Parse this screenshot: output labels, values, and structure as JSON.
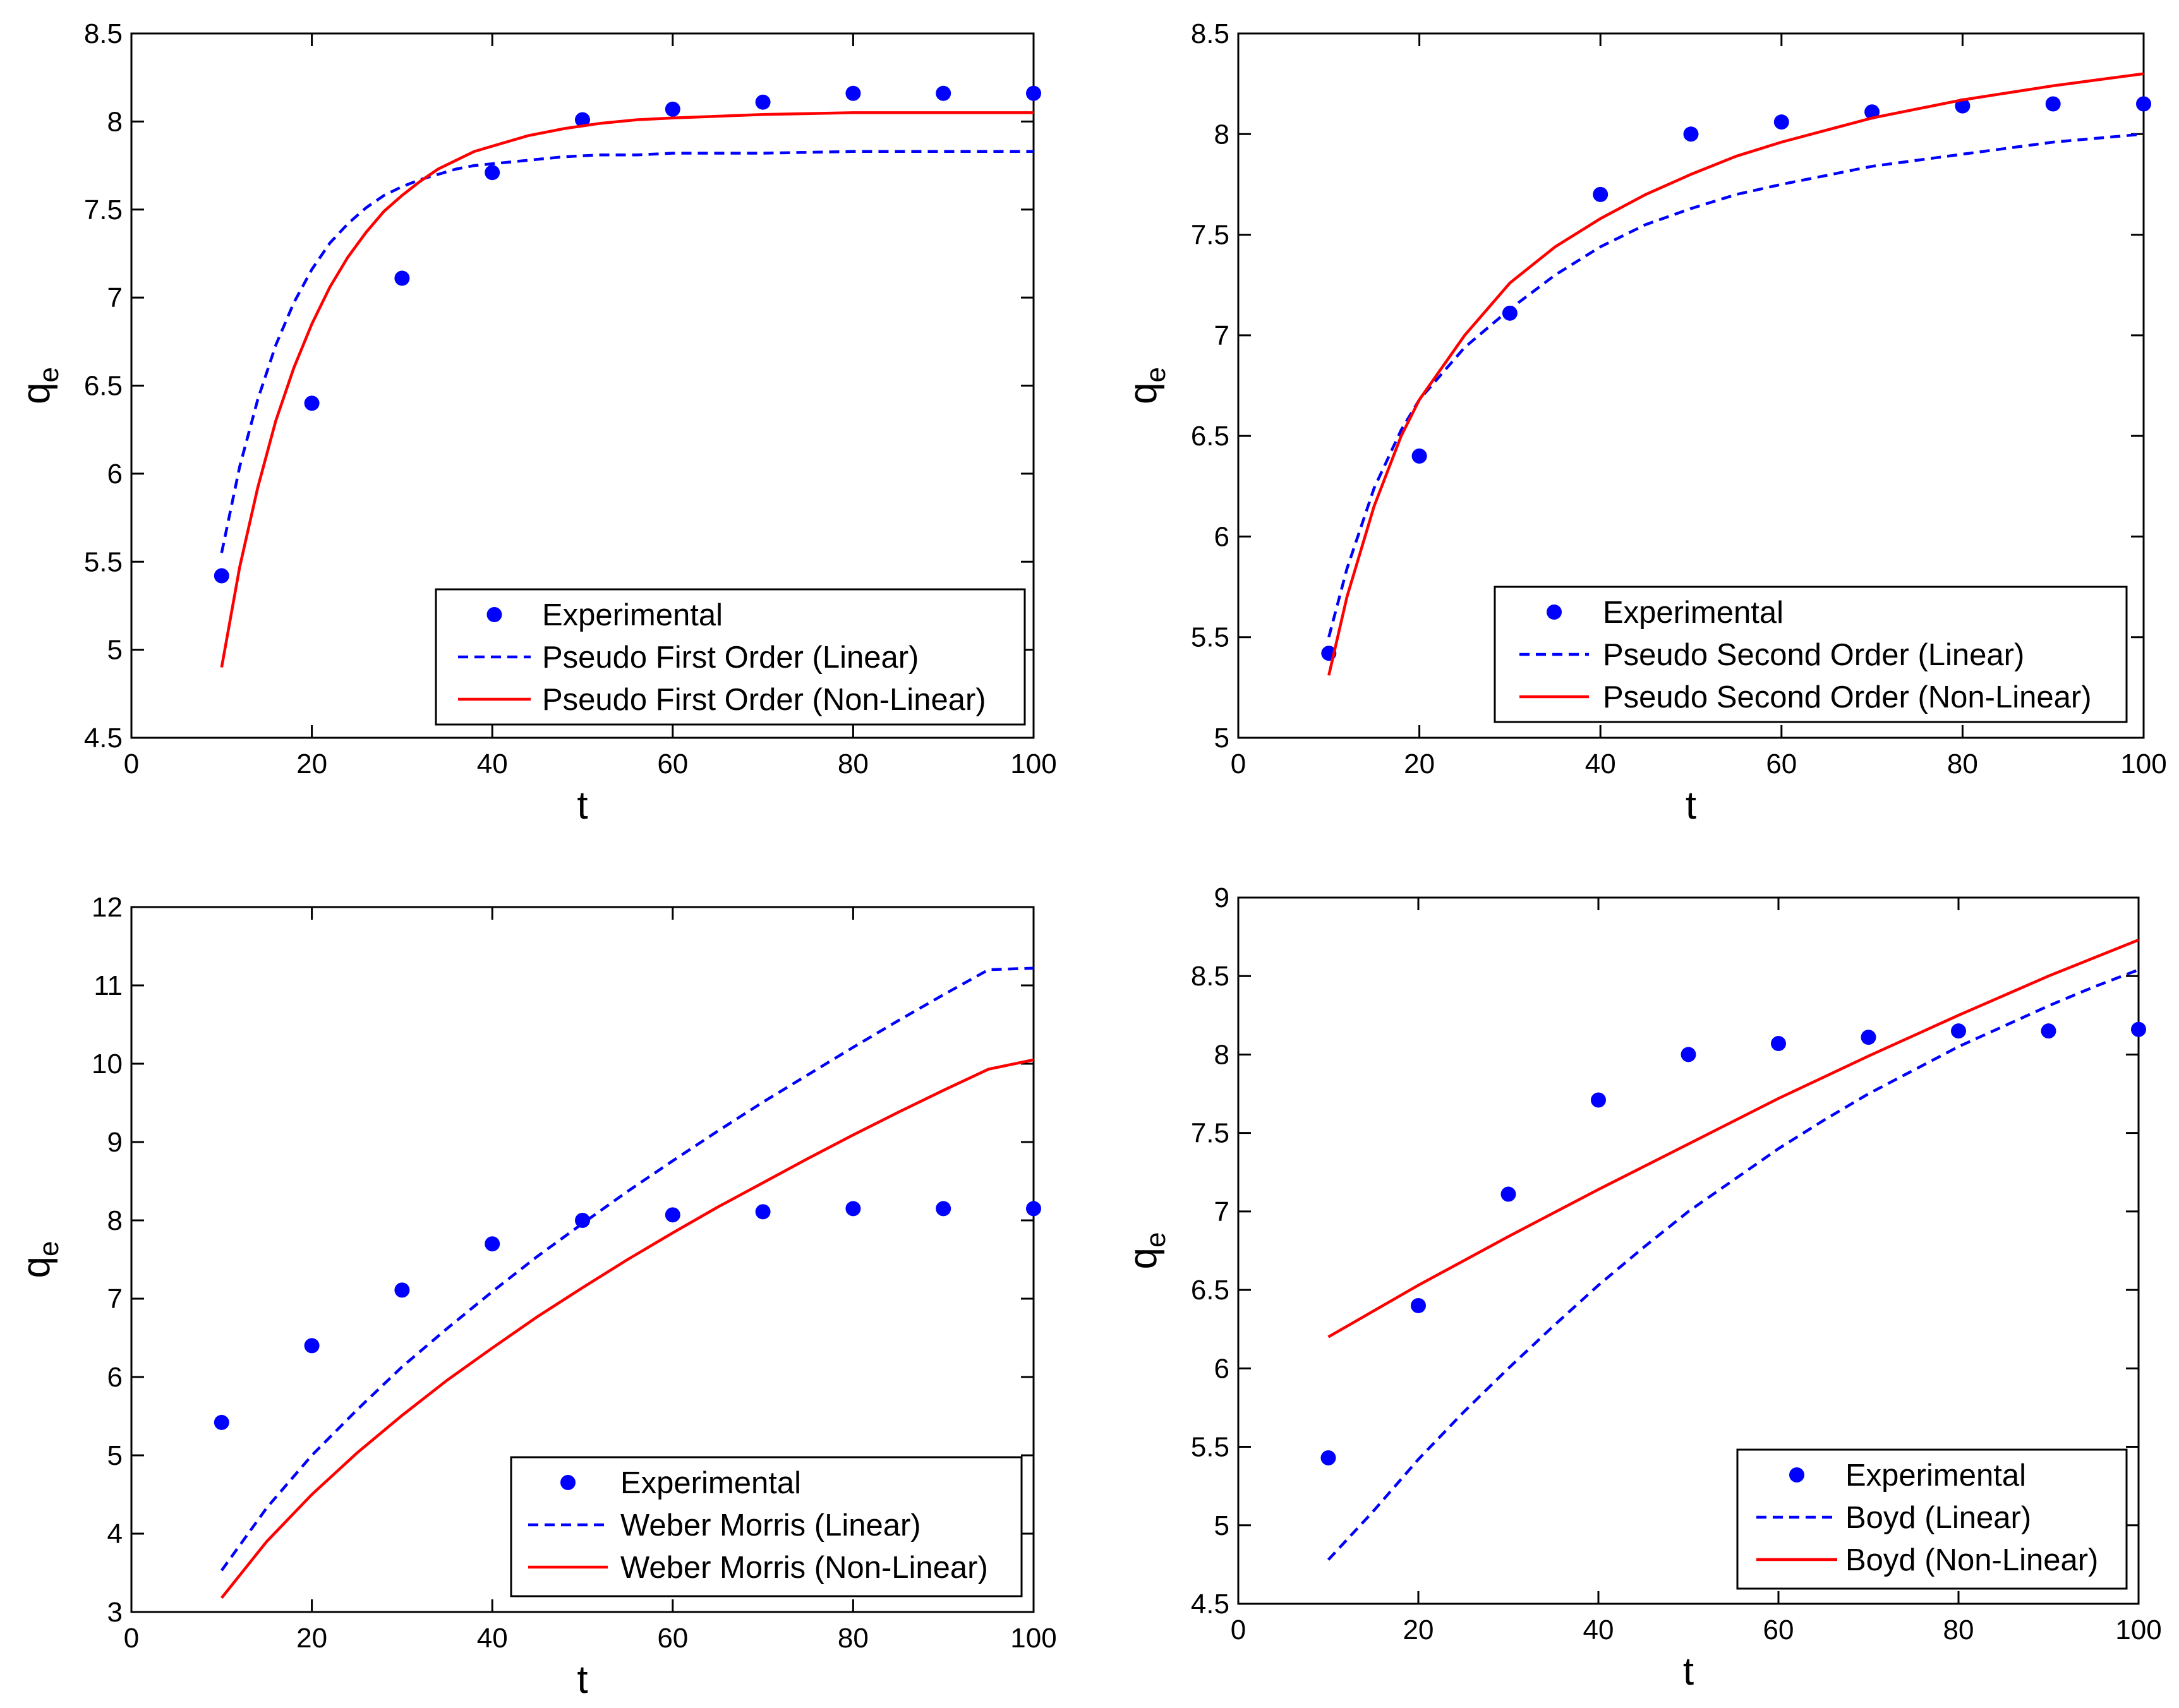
{
  "chart_data": [
    {
      "type": "line",
      "title": "",
      "xlabel": "t",
      "ylabel": "q",
      "ylabel_subscript": "e",
      "xlim": [
        0,
        100
      ],
      "ylim": [
        4.5,
        8.5
      ],
      "xticks": [
        0,
        20,
        40,
        60,
        80,
        100
      ],
      "yticks": [
        4.5,
        5,
        5.5,
        6,
        6.5,
        7,
        7.5,
        8,
        8.5
      ],
      "grid": false,
      "legend_position": "bottom-right",
      "series": [
        {
          "name": "Experimental",
          "style": "markers",
          "color": "#0000ff",
          "x": [
            10,
            20,
            30,
            40,
            50,
            60,
            70,
            80,
            90,
            100
          ],
          "y": [
            5.42,
            6.4,
            7.11,
            7.71,
            8.01,
            8.07,
            8.11,
            8.16,
            8.16,
            8.16
          ]
        },
        {
          "name": "Pseudo First Order (Linear)",
          "style": "dashed",
          "color": "#0000ff",
          "x": [
            10,
            12,
            14,
            16,
            18,
            20,
            22,
            24,
            26,
            28,
            30,
            32,
            34,
            36,
            38,
            40,
            44,
            48,
            52,
            56,
            60,
            70,
            80,
            90,
            100
          ],
          "y": [
            5.55,
            6.04,
            6.42,
            6.73,
            6.97,
            7.16,
            7.31,
            7.42,
            7.51,
            7.58,
            7.63,
            7.67,
            7.7,
            7.73,
            7.75,
            7.76,
            7.78,
            7.8,
            7.81,
            7.81,
            7.82,
            7.82,
            7.83,
            7.83,
            7.83
          ]
        },
        {
          "name": "Pseudo First Order (Non-Linear)",
          "style": "solid",
          "color": "#ff0000",
          "x": [
            10,
            12,
            14,
            16,
            18,
            20,
            22,
            24,
            26,
            28,
            30,
            32,
            34,
            36,
            38,
            40,
            44,
            48,
            52,
            56,
            60,
            70,
            80,
            90,
            100
          ],
          "y": [
            4.9,
            5.47,
            5.92,
            6.3,
            6.6,
            6.85,
            7.06,
            7.23,
            7.37,
            7.49,
            7.58,
            7.66,
            7.73,
            7.78,
            7.83,
            7.86,
            7.92,
            7.96,
            7.99,
            8.01,
            8.02,
            8.04,
            8.05,
            8.05,
            8.05
          ]
        }
      ]
    },
    {
      "type": "line",
      "title": "",
      "xlabel": "t",
      "ylabel": "q",
      "ylabel_subscript": "e",
      "xlim": [
        0,
        100
      ],
      "ylim": [
        5,
        8.5
      ],
      "xticks": [
        0,
        20,
        40,
        60,
        80,
        100
      ],
      "yticks": [
        5,
        5.5,
        6,
        6.5,
        7,
        7.5,
        8,
        8.5
      ],
      "grid": false,
      "legend_position": "bottom-right",
      "series": [
        {
          "name": "Experimental",
          "style": "markers",
          "color": "#0000ff",
          "x": [
            10,
            20,
            30,
            40,
            50,
            60,
            70,
            80,
            90,
            100
          ],
          "y": [
            5.42,
            6.4,
            7.11,
            7.7,
            8.0,
            8.06,
            8.11,
            8.14,
            8.15,
            8.15
          ]
        },
        {
          "name": "Pseudo Second Order (Linear)",
          "style": "dashed",
          "color": "#0000ff",
          "x": [
            10,
            12,
            15,
            18,
            20,
            25,
            30,
            35,
            40,
            45,
            50,
            55,
            60,
            70,
            80,
            90,
            100
          ],
          "y": [
            5.5,
            5.84,
            6.24,
            6.53,
            6.68,
            6.94,
            7.13,
            7.3,
            7.44,
            7.55,
            7.63,
            7.7,
            7.75,
            7.84,
            7.9,
            7.96,
            8.0
          ]
        },
        {
          "name": "Pseudo Second Order (Non-Linear)",
          "style": "solid",
          "color": "#ff0000",
          "x": [
            10,
            12,
            15,
            18,
            20,
            25,
            30,
            35,
            40,
            45,
            50,
            55,
            60,
            70,
            80,
            90,
            100
          ],
          "y": [
            5.31,
            5.7,
            6.15,
            6.5,
            6.68,
            7.0,
            7.26,
            7.44,
            7.58,
            7.7,
            7.8,
            7.89,
            7.96,
            8.08,
            8.17,
            8.24,
            8.3
          ]
        }
      ]
    },
    {
      "type": "line",
      "title": "",
      "xlabel": "t",
      "ylabel": "q",
      "ylabel_subscript": "e",
      "xlim": [
        0,
        100
      ],
      "ylim": [
        3,
        12
      ],
      "xticks": [
        0,
        20,
        40,
        60,
        80,
        100
      ],
      "yticks": [
        3,
        4,
        5,
        6,
        7,
        8,
        9,
        10,
        11,
        12
      ],
      "grid": false,
      "legend_position": "bottom-right",
      "series": [
        {
          "name": "Experimental",
          "style": "markers",
          "color": "#0000ff",
          "x": [
            10,
            20,
            30,
            40,
            50,
            60,
            70,
            80,
            90,
            100
          ],
          "y": [
            5.42,
            6.4,
            7.11,
            7.7,
            8.0,
            8.07,
            8.11,
            8.15,
            8.15,
            8.15
          ]
        },
        {
          "name": "Weber Morris (Linear)",
          "style": "dashed",
          "color": "#0000ff",
          "x": [
            10,
            15,
            20,
            25,
            30,
            35,
            40,
            45,
            50,
            55,
            60,
            65,
            70,
            75,
            80,
            85,
            90,
            95,
            100
          ],
          "y": [
            3.53,
            4.33,
            5.0,
            5.58,
            6.13,
            6.62,
            7.09,
            7.54,
            7.96,
            8.37,
            8.76,
            9.14,
            9.51,
            9.86,
            10.21,
            10.55,
            10.88,
            11.2,
            11.22
          ]
        },
        {
          "name": "Weber Morris (Non-Linear)",
          "style": "solid",
          "color": "#ff0000",
          "x": [
            10,
            15,
            20,
            25,
            30,
            35,
            40,
            45,
            50,
            55,
            60,
            65,
            70,
            75,
            80,
            85,
            90,
            95,
            100
          ],
          "y": [
            3.18,
            3.9,
            4.5,
            5.03,
            5.51,
            5.96,
            6.37,
            6.77,
            7.14,
            7.5,
            7.84,
            8.17,
            8.48,
            8.79,
            9.09,
            9.38,
            9.66,
            9.93,
            10.05
          ]
        }
      ]
    },
    {
      "type": "line",
      "title": "",
      "xlabel": "t",
      "ylabel": "q",
      "ylabel_subscript": "e",
      "xlim": [
        0,
        100
      ],
      "ylim": [
        4.5,
        9
      ],
      "xticks": [
        0,
        20,
        40,
        60,
        80,
        100
      ],
      "yticks": [
        4.5,
        5,
        5.5,
        6,
        6.5,
        7,
        7.5,
        8,
        8.5,
        9
      ],
      "grid": false,
      "legend_position": "bottom-right",
      "series": [
        {
          "name": "Experimental",
          "style": "markers",
          "color": "#0000ff",
          "x": [
            10,
            20,
            30,
            40,
            50,
            60,
            70,
            80,
            90,
            100
          ],
          "y": [
            5.43,
            6.4,
            7.11,
            7.71,
            8.0,
            8.07,
            8.11,
            8.15,
            8.15,
            8.16
          ]
        },
        {
          "name": "Boyd (Linear)",
          "style": "dashed",
          "color": "#0000ff",
          "x": [
            10,
            15,
            20,
            25,
            30,
            35,
            40,
            45,
            50,
            55,
            60,
            65,
            70,
            75,
            80,
            85,
            90,
            95,
            100
          ],
          "y": [
            4.78,
            5.09,
            5.42,
            5.72,
            6.0,
            6.27,
            6.53,
            6.77,
            7.0,
            7.2,
            7.4,
            7.58,
            7.75,
            7.9,
            8.05,
            8.18,
            8.31,
            8.43,
            8.54
          ]
        },
        {
          "name": "Boyd (Non-Linear)",
          "style": "solid",
          "color": "#ff0000",
          "x": [
            10,
            20,
            30,
            40,
            50,
            60,
            70,
            80,
            90,
            100
          ],
          "y": [
            6.2,
            6.53,
            6.84,
            7.14,
            7.43,
            7.72,
            7.99,
            8.25,
            8.5,
            8.73
          ]
        }
      ]
    }
  ]
}
